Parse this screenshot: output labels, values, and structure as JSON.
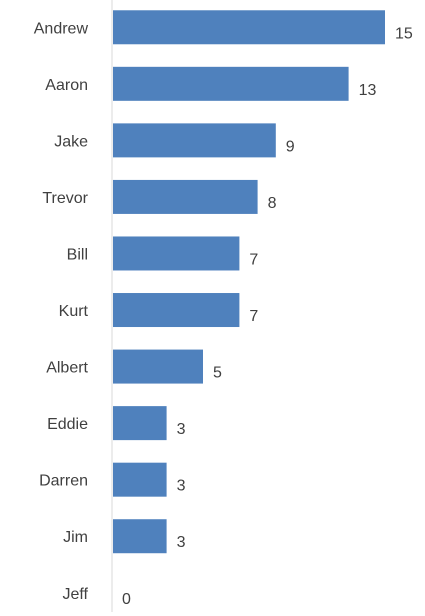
{
  "chart_data": {
    "type": "bar",
    "orientation": "horizontal",
    "title": "",
    "xlabel": "",
    "ylabel": "",
    "categories": [
      "Andrew",
      "Aaron",
      "Jake",
      "Trevor",
      "Bill",
      "Kurt",
      "Albert",
      "Eddie",
      "Darren",
      "Jim",
      "Jeff"
    ],
    "values": [
      15,
      13,
      9,
      8,
      7,
      7,
      5,
      3,
      3,
      3,
      0
    ],
    "xlim": [
      0,
      15
    ],
    "grid": false,
    "data_labels": true,
    "bar_color": "#4F81BD",
    "axis_color": "#D9D9D9",
    "text_color": "#404040"
  }
}
